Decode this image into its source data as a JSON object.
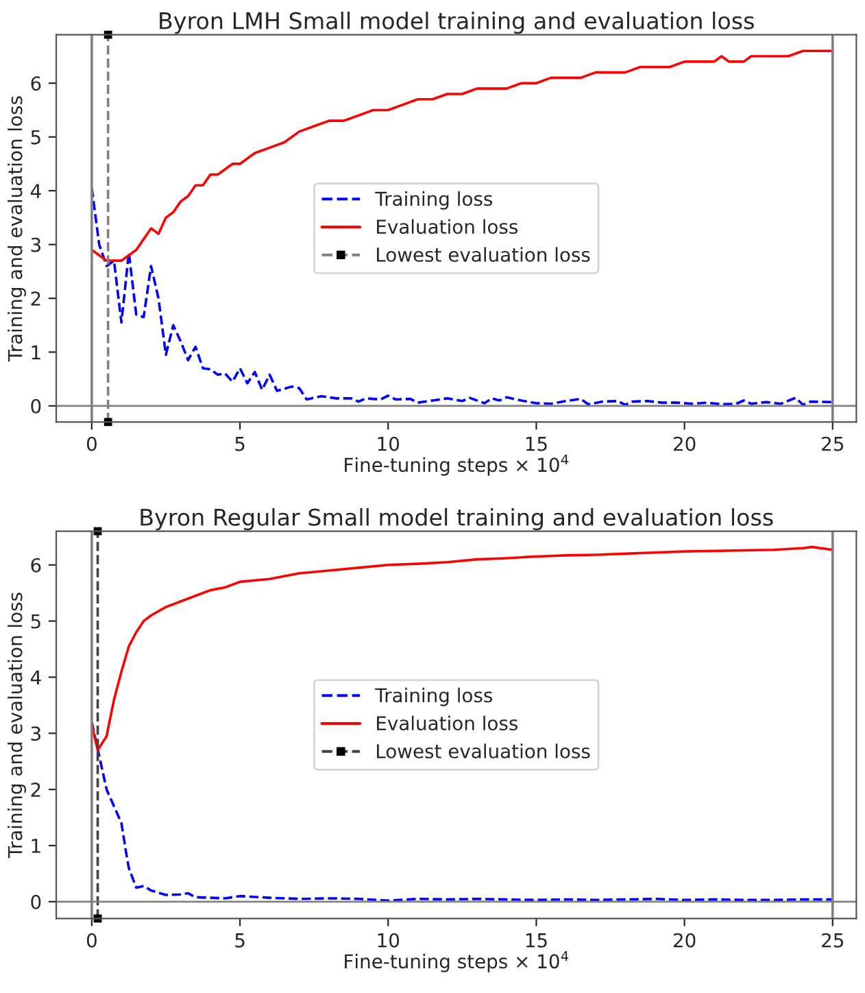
{
  "chart_data": [
    {
      "type": "line",
      "title": "Byron LMH Small model training and evaluation loss",
      "xlabel": "Fine-tuning steps × 10$^{4}$",
      "ylabel": "Training and evaluation loss",
      "xlim": [
        -1.2,
        25.8
      ],
      "ylim": [
        -0.3,
        6.9
      ],
      "xticks": [
        0,
        5,
        10,
        15,
        20,
        25
      ],
      "yticks": [
        0,
        1,
        2,
        3,
        4,
        5,
        6
      ],
      "grid": false,
      "legend": "center",
      "series": [
        {
          "name": "Training loss",
          "color": "#0000ff",
          "line_style": "dashed",
          "x": [
            0,
            0.25,
            0.5,
            0.75,
            1.0,
            1.25,
            1.5,
            1.75,
            2.0,
            2.25,
            2.5,
            2.75,
            3.0,
            3.25,
            3.5,
            3.75,
            4.0,
            4.25,
            4.5,
            4.75,
            5.0,
            5.25,
            5.5,
            5.75,
            6.0,
            6.25,
            6.75,
            7.0,
            7.25,
            7.75,
            8.25,
            8.75,
            9.0,
            9.25,
            9.75,
            10.0,
            10.25,
            10.75,
            11.0,
            11.5,
            12.0,
            12.5,
            12.75,
            13.25,
            13.5,
            13.75,
            14.0,
            14.5,
            15.0,
            15.5,
            16.0,
            16.5,
            16.75,
            17.25,
            17.75,
            18.0,
            18.25,
            18.75,
            19.25,
            19.75,
            20.25,
            20.75,
            21.25,
            21.75,
            22.0,
            22.25,
            22.75,
            23.25,
            23.75,
            24.0,
            24.25,
            25.0
          ],
          "values": [
            4.05,
            3.0,
            2.6,
            2.7,
            1.55,
            2.85,
            1.7,
            1.65,
            2.6,
            2.0,
            0.95,
            1.5,
            1.2,
            0.85,
            1.1,
            0.7,
            0.68,
            0.58,
            0.6,
            0.45,
            0.7,
            0.42,
            0.63,
            0.3,
            0.58,
            0.28,
            0.36,
            0.33,
            0.12,
            0.18,
            0.14,
            0.14,
            0.08,
            0.14,
            0.12,
            0.19,
            0.12,
            0.13,
            0.06,
            0.1,
            0.14,
            0.09,
            0.15,
            0.05,
            0.14,
            0.1,
            0.16,
            0.1,
            0.05,
            0.04,
            0.09,
            0.13,
            0.03,
            0.08,
            0.09,
            0.02,
            0.08,
            0.09,
            0.06,
            0.06,
            0.04,
            0.06,
            0.03,
            0.04,
            0.1,
            0.04,
            0.07,
            0.04,
            0.15,
            0.02,
            0.08,
            0.07
          ]
        },
        {
          "name": "Evaluation loss",
          "color": "#ff0000",
          "line_style": "solid",
          "x": [
            0,
            0.25,
            0.5,
            0.75,
            1.0,
            1.25,
            1.5,
            1.75,
            2.0,
            2.25,
            2.5,
            2.75,
            3.0,
            3.25,
            3.5,
            3.75,
            4.0,
            4.25,
            4.5,
            4.75,
            5.0,
            5.5,
            6.0,
            6.5,
            7.0,
            7.5,
            8.0,
            8.5,
            9.0,
            9.5,
            10.0,
            10.5,
            11.0,
            11.5,
            12.0,
            12.5,
            13.0,
            14.0,
            14.5,
            15.0,
            15.5,
            16.5,
            17.0,
            18.0,
            18.5,
            19.5,
            20.0,
            21.0,
            21.25,
            21.5,
            22.0,
            22.25,
            23.5,
            24.0,
            25.0
          ],
          "values": [
            2.9,
            2.8,
            2.7,
            2.7,
            2.7,
            2.8,
            2.9,
            3.1,
            3.3,
            3.2,
            3.5,
            3.6,
            3.8,
            3.9,
            4.1,
            4.1,
            4.3,
            4.3,
            4.4,
            4.5,
            4.5,
            4.7,
            4.8,
            4.9,
            5.1,
            5.2,
            5.3,
            5.3,
            5.4,
            5.5,
            5.5,
            5.6,
            5.7,
            5.7,
            5.8,
            5.8,
            5.9,
            5.9,
            6.0,
            6.0,
            6.1,
            6.1,
            6.2,
            6.2,
            6.3,
            6.3,
            6.4,
            6.4,
            6.5,
            6.4,
            6.4,
            6.5,
            6.5,
            6.6,
            6.6
          ]
        },
        {
          "name": "Lowest evaluation loss",
          "color": "#808080",
          "line_style": "dashed",
          "marker": "square",
          "x": [
            0.55,
            0.55
          ],
          "values": [
            -0.3,
            6.9
          ]
        }
      ],
      "ref_lines": [
        {
          "axis": "x",
          "value": 0,
          "color": "#808080",
          "line_style": "solid"
        },
        {
          "axis": "x",
          "value": 25,
          "color": "#808080",
          "line_style": "solid"
        },
        {
          "axis": "y",
          "value": 0,
          "color": "#808080",
          "line_style": "solid"
        }
      ]
    },
    {
      "type": "line",
      "title": "Byron Regular Small model training and evaluation loss",
      "xlabel": "Fine-tuning steps × 10$^{4}$",
      "ylabel": "Training and evaluation loss",
      "xlim": [
        -1.2,
        25.8
      ],
      "ylim": [
        -0.3,
        6.6
      ],
      "xticks": [
        0,
        5,
        10,
        15,
        20,
        25
      ],
      "yticks": [
        0,
        1,
        2,
        3,
        4,
        5,
        6
      ],
      "grid": false,
      "legend": "center",
      "series": [
        {
          "name": "Training loss",
          "color": "#0000ff",
          "line_style": "dashed",
          "x": [
            0,
            0.25,
            0.5,
            0.75,
            1.0,
            1.15,
            1.25,
            1.5,
            1.75,
            2.0,
            2.5,
            3.0,
            3.25,
            3.5,
            4.5,
            5.0,
            6.0,
            7.0,
            8.0,
            9.0,
            10.0,
            11.0,
            12.0,
            13.0,
            14.0,
            15.0,
            16.0,
            17.0,
            18.0,
            19.0,
            20.0,
            21.0,
            22.0,
            23.0,
            24.0,
            25.0
          ],
          "values": [
            3.2,
            2.6,
            2.0,
            1.7,
            1.4,
            0.9,
            0.6,
            0.25,
            0.28,
            0.2,
            0.12,
            0.13,
            0.15,
            0.08,
            0.06,
            0.1,
            0.07,
            0.05,
            0.06,
            0.05,
            0.02,
            0.05,
            0.04,
            0.05,
            0.04,
            0.03,
            0.04,
            0.03,
            0.04,
            0.05,
            0.03,
            0.04,
            0.03,
            0.03,
            0.04,
            0.04
          ]
        },
        {
          "name": "Evaluation loss",
          "color": "#ff0000",
          "line_style": "solid",
          "x": [
            0,
            0.2,
            0.5,
            0.75,
            1.0,
            1.25,
            1.5,
            1.75,
            2.0,
            2.5,
            3.0,
            3.5,
            3.75,
            4.0,
            4.5,
            5.0,
            6.0,
            7.0,
            8.0,
            9.0,
            10.0,
            11.0,
            12.0,
            13.0,
            14.0,
            15.0,
            16.0,
            17.0,
            18.0,
            19.0,
            20.0,
            21.0,
            22.0,
            23.0,
            24.0,
            24.3,
            25.0
          ],
          "values": [
            3.15,
            2.7,
            2.95,
            3.6,
            4.1,
            4.55,
            4.8,
            5.0,
            5.1,
            5.25,
            5.35,
            5.45,
            5.5,
            5.55,
            5.6,
            5.7,
            5.75,
            5.85,
            5.9,
            5.95,
            6.0,
            6.02,
            6.05,
            6.1,
            6.12,
            6.15,
            6.17,
            6.18,
            6.2,
            6.22,
            6.24,
            6.25,
            6.26,
            6.27,
            6.3,
            6.32,
            6.27
          ]
        },
        {
          "name": "Lowest evaluation loss",
          "color": "#404040",
          "line_style": "dashed",
          "marker": "square",
          "x": [
            0.2,
            0.2
          ],
          "values": [
            -0.3,
            6.6
          ]
        }
      ],
      "ref_lines": [
        {
          "axis": "x",
          "value": 0,
          "color": "#808080",
          "line_style": "solid"
        },
        {
          "axis": "x",
          "value": 25,
          "color": "#808080",
          "line_style": "solid"
        },
        {
          "axis": "y",
          "value": 0,
          "color": "#808080",
          "line_style": "solid"
        }
      ]
    }
  ]
}
